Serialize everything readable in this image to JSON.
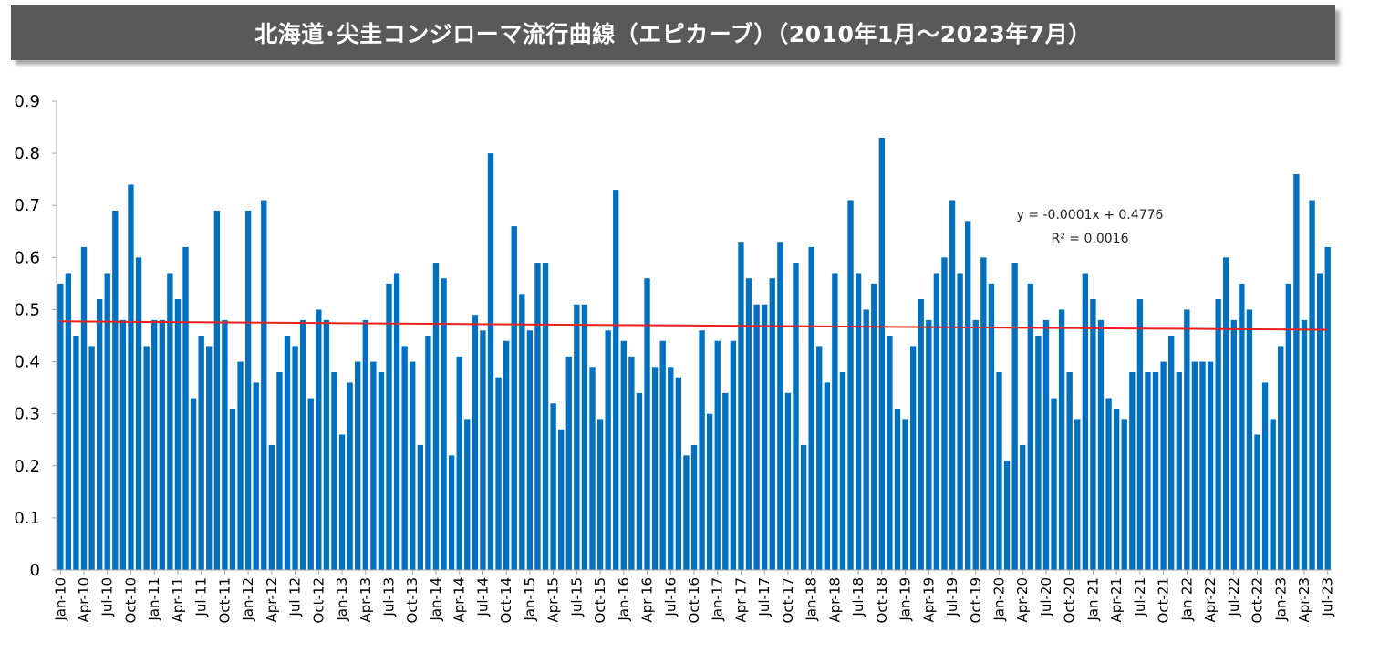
{
  "title": "北海道･尖圭コンジローマ流行曲線（エピカーブ）（2010年1月～2023年7月）",
  "colors": {
    "bar": "#0070c0",
    "trendline": "#e8211e",
    "axis": "#a6a6a6",
    "title_bg": "#595959"
  },
  "chart_data": {
    "type": "bar",
    "title": "北海道･尖圭コンジローマ流行曲線（エピカーブ）（2010年1月～2023年7月）",
    "xlabel": "",
    "ylabel": "",
    "ylim": [
      0,
      0.9
    ],
    "yticks": [
      "0",
      "0.1",
      "0.2",
      "0.3",
      "0.4",
      "0.5",
      "0.6",
      "0.7",
      "0.8",
      "0.9"
    ],
    "grid": false,
    "x_tick_labels": [
      "Jan-10",
      "Apr-10",
      "Jul-10",
      "Oct-10",
      "Jan-11",
      "Apr-11",
      "Jul-11",
      "Oct-11",
      "Jan-12",
      "Apr-12",
      "Jul-12",
      "Oct-12",
      "Jan-13",
      "Apr-13",
      "Jul-13",
      "Oct-13",
      "Jan-14",
      "Apr-14",
      "Jul-14",
      "Oct-14",
      "Jan-15",
      "Apr-15",
      "Jul-15",
      "Oct-15",
      "Jan-16",
      "Apr-16",
      "Jul-16",
      "Oct-16",
      "Jan-17",
      "Apr-17",
      "Jul-17",
      "Oct-17",
      "Jan-18",
      "Apr-18",
      "Jul-18",
      "Oct-18",
      "Jan-19",
      "Apr-19",
      "Jul-19",
      "Oct-19",
      "Jan-20",
      "Apr-20",
      "Jul-20",
      "Oct-20",
      "Jan-21",
      "Apr-21",
      "Jul-21",
      "Oct-21",
      "Jan-22",
      "Apr-22",
      "Jul-22",
      "Oct-22",
      "Jan-23",
      "Apr-23",
      "Jul-23"
    ],
    "values": [
      0.55,
      0.57,
      0.45,
      0.62,
      0.43,
      0.52,
      0.57,
      0.69,
      0.48,
      0.74,
      0.6,
      0.43,
      0.48,
      0.48,
      0.57,
      0.52,
      0.62,
      0.33,
      0.45,
      0.43,
      0.69,
      0.48,
      0.31,
      0.4,
      0.69,
      0.36,
      0.71,
      0.24,
      0.38,
      0.45,
      0.43,
      0.48,
      0.33,
      0.5,
      0.48,
      0.38,
      0.26,
      0.36,
      0.4,
      0.48,
      0.4,
      0.38,
      0.55,
      0.57,
      0.43,
      0.4,
      0.24,
      0.45,
      0.59,
      0.56,
      0.22,
      0.41,
      0.29,
      0.49,
      0.46,
      0.8,
      0.37,
      0.44,
      0.66,
      0.53,
      0.46,
      0.59,
      0.59,
      0.32,
      0.27,
      0.41,
      0.51,
      0.51,
      0.39,
      0.29,
      0.46,
      0.73,
      0.44,
      0.41,
      0.34,
      0.56,
      0.39,
      0.44,
      0.39,
      0.37,
      0.22,
      0.24,
      0.46,
      0.3,
      0.44,
      0.34,
      0.44,
      0.63,
      0.56,
      0.51,
      0.51,
      0.56,
      0.63,
      0.34,
      0.59,
      0.24,
      0.62,
      0.43,
      0.36,
      0.57,
      0.38,
      0.71,
      0.57,
      0.5,
      0.55,
      0.83,
      0.45,
      0.31,
      0.29,
      0.43,
      0.52,
      0.48,
      0.57,
      0.6,
      0.71,
      0.57,
      0.67,
      0.48,
      0.6,
      0.55,
      0.38,
      0.21,
      0.59,
      0.24,
      0.55,
      0.45,
      0.48,
      0.33,
      0.5,
      0.38,
      0.29,
      0.57,
      0.52,
      0.48,
      0.33,
      0.31,
      0.29,
      0.38,
      0.52,
      0.38,
      0.38,
      0.4,
      0.45,
      0.38,
      0.5,
      0.4,
      0.4,
      0.4,
      0.52,
      0.6,
      0.48,
      0.55,
      0.5,
      0.26,
      0.36,
      0.29,
      0.43,
      0.55,
      0.76,
      0.48,
      0.71,
      0.57,
      0.62
    ],
    "trendline": {
      "type": "linear",
      "slope": -0.0001,
      "intercept": 0.4776,
      "equation_label": "y = -0.0001x + 0.4776",
      "r2_label": "R² = 0.0016"
    }
  }
}
